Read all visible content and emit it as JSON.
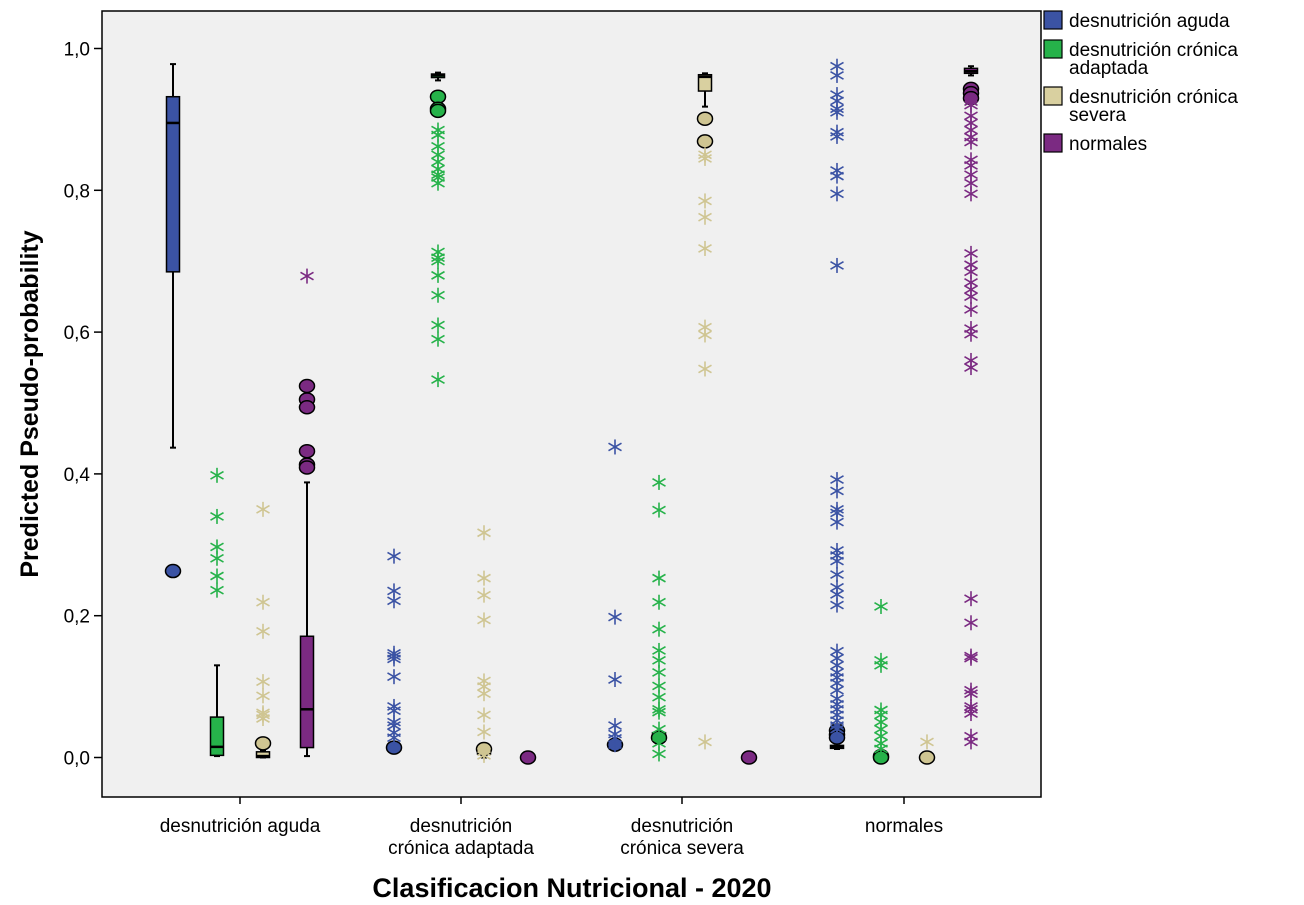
{
  "chart_data": {
    "type": "boxplot",
    "xlabel": "Clasificacion Nutricional - 2020",
    "ylabel": "Predicted Pseudo-probability",
    "ylim": [
      -0.06,
      1.05
    ],
    "yticks": [
      {
        "value": 0.0,
        "label": "0,0"
      },
      {
        "value": 0.2,
        "label": "0,2"
      },
      {
        "value": 0.4,
        "label": "0,4"
      },
      {
        "value": 0.6,
        "label": "0,6"
      },
      {
        "value": 0.8,
        "label": "0,8"
      },
      {
        "value": 1.0,
        "label": "1,0"
      }
    ],
    "categories": [
      {
        "lines": [
          "desnutrición aguda"
        ]
      },
      {
        "lines": [
          "desnutrición",
          "crónica adaptada"
        ]
      },
      {
        "lines": [
          "desnutrición",
          "crónica severa"
        ]
      },
      {
        "lines": [
          "normales"
        ]
      }
    ],
    "legend_position": "top-right",
    "series": [
      {
        "name": "desnutrición aguda",
        "legend_lines": [
          "desnutrición aguda"
        ],
        "color": "#3b53a4",
        "marker_color": "#3b53a4"
      },
      {
        "name": "desnutrición crónica adaptada",
        "legend_lines": [
          "desnutrición crónica",
          "adaptada"
        ],
        "color": "#26b24a",
        "marker_color": "#26b24a"
      },
      {
        "name": "desnutrición crónica severa",
        "legend_lines": [
          "desnutrición crónica",
          "severa"
        ],
        "color": "#d9d0a0",
        "marker_color": "#cfc592"
      },
      {
        "name": "normales",
        "legend_lines": [
          "normales"
        ],
        "color": "#7b2a82",
        "marker_color": "#7b2a82"
      }
    ],
    "boxes": [
      [
        {
          "whisker_low": 0.437,
          "q1": 0.685,
          "median": 0.895,
          "q3": 0.932,
          "whisker_high": 0.978,
          "outliers": [
            0.263
          ],
          "extremes": []
        },
        {
          "whisker_low": 0.002,
          "q1": 0.003,
          "median": 0.015,
          "q3": 0.057,
          "whisker_high": 0.13,
          "outliers": [],
          "extremes": [
            0.398,
            0.34,
            0.297,
            0.281,
            0.256,
            0.236
          ]
        },
        {
          "whisker_low": 0.0,
          "q1": 0.0,
          "median": 0.002,
          "q3": 0.008,
          "whisker_high": 0.01,
          "outliers": [
            0.02
          ],
          "extremes": [
            0.35,
            0.219,
            0.178,
            0.107,
            0.087,
            0.063,
            0.06,
            0.055
          ]
        },
        {
          "whisker_low": 0.002,
          "q1": 0.014,
          "median": 0.068,
          "q3": 0.171,
          "whisker_high": 0.388,
          "outliers": [
            0.524,
            0.505,
            0.494,
            0.432,
            0.413,
            0.409
          ],
          "extremes": [
            0.679
          ]
        }
      ],
      [
        {
          "whisker_low": 0.01,
          "q1": 0.011,
          "median": 0.012,
          "q3": 0.014,
          "whisker_high": 0.016,
          "outliers": [
            0.014
          ],
          "extremes": [
            0.284,
            0.235,
            0.221,
            0.147,
            0.143,
            0.139,
            0.114,
            0.072,
            0.066,
            0.05,
            0.045,
            0.035,
            0.028
          ]
        },
        {
          "whisker_low": 0.955,
          "q1": 0.959,
          "median": 0.962,
          "q3": 0.964,
          "whisker_high": 0.966,
          "outliers": [
            0.932,
            0.915,
            0.912
          ],
          "extremes": [
            0.885,
            0.878,
            0.862,
            0.85,
            0.84,
            0.83,
            0.822,
            0.818,
            0.81,
            0.713,
            0.705,
            0.7,
            0.68,
            0.652,
            0.61,
            0.59,
            0.533
          ]
        },
        {
          "whisker_low": 0.0,
          "q1": 0.005,
          "median": 0.01,
          "q3": 0.015,
          "whisker_high": 0.02,
          "outliers": [
            0.012
          ],
          "extremes": [
            0.317,
            0.253,
            0.229,
            0.194,
            0.108,
            0.1,
            0.09,
            0.06,
            0.036,
            0.008,
            0.003
          ]
        },
        {
          "whisker_low": 0.0,
          "q1": 0.0,
          "median": 0.0,
          "q3": 0.0,
          "whisker_high": 0.0,
          "outliers": [
            0.0
          ],
          "extremes": []
        }
      ],
      [
        {
          "whisker_low": 0.015,
          "q1": 0.016,
          "median": 0.018,
          "q3": 0.02,
          "whisker_high": 0.022,
          "outliers": [
            0.018
          ],
          "extremes": [
            0.438,
            0.198,
            0.11,
            0.045,
            0.033,
            0.027,
            0.018
          ]
        },
        {
          "whisker_low": 0.028,
          "q1": 0.03,
          "median": 0.033,
          "q3": 0.035,
          "whisker_high": 0.037,
          "outliers": [
            0.028
          ],
          "extremes": [
            0.388,
            0.349,
            0.253,
            0.219,
            0.181,
            0.151,
            0.137,
            0.12,
            0.101,
            0.085,
            0.068,
            0.064,
            0.04,
            0.02,
            0.005
          ]
        },
        {
          "whisker_low": 0.918,
          "q1": 0.94,
          "median": 0.96,
          "q3": 0.963,
          "whisker_high": 0.965,
          "outliers": [
            0.901,
            0.869
          ],
          "extremes": [
            0.85,
            0.845,
            0.785,
            0.762,
            0.718,
            0.607,
            0.596,
            0.548,
            0.022
          ]
        },
        {
          "whisker_low": 0.0,
          "q1": 0.0,
          "median": 0.0,
          "q3": 0.0,
          "whisker_high": 0.0,
          "outliers": [
            0.0
          ],
          "extremes": []
        }
      ],
      [
        {
          "whisker_low": 0.012,
          "q1": 0.013,
          "median": 0.015,
          "q3": 0.017,
          "whisker_high": 0.02,
          "outliers": [
            0.038,
            0.032,
            0.028
          ],
          "extremes": [
            0.975,
            0.962,
            0.935,
            0.926,
            0.915,
            0.91,
            0.882,
            0.876,
            0.828,
            0.82,
            0.795,
            0.694,
            0.392,
            0.376,
            0.35,
            0.345,
            0.332,
            0.292,
            0.285,
            0.277,
            0.258,
            0.24,
            0.23,
            0.215,
            0.15,
            0.14,
            0.13,
            0.12,
            0.113,
            0.105,
            0.095,
            0.083,
            0.075,
            0.068,
            0.06,
            0.052,
            0.045,
            0.04
          ]
        },
        {
          "whisker_low": 0.0,
          "q1": 0.0,
          "median": 0.0,
          "q3": 0.001,
          "whisker_high": 0.002,
          "outliers": [
            0.002,
            0.0
          ],
          "extremes": [
            0.213,
            0.137,
            0.13,
            0.067,
            0.06,
            0.05,
            0.04,
            0.03,
            0.02,
            0.012
          ]
        },
        {
          "whisker_low": 0.0,
          "q1": 0.0,
          "median": 0.0,
          "q3": 0.0,
          "whisker_high": 0.0,
          "outliers": [
            0.0
          ],
          "extremes": [
            0.022
          ]
        },
        {
          "whisker_low": 0.962,
          "q1": 0.965,
          "median": 0.968,
          "q3": 0.972,
          "whisker_high": 0.975,
          "outliers": [
            0.943,
            0.937,
            0.93
          ],
          "extremes": [
            0.925,
            0.92,
            0.905,
            0.895,
            0.885,
            0.875,
            0.868,
            0.843,
            0.835,
            0.822,
            0.81,
            0.795,
            0.711,
            0.695,
            0.685,
            0.67,
            0.66,
            0.65,
            0.632,
            0.605,
            0.597,
            0.56,
            0.55,
            0.224,
            0.19,
            0.143,
            0.14,
            0.095,
            0.09,
            0.072,
            0.068,
            0.062,
            0.03,
            0.022
          ]
        }
      ]
    ]
  }
}
